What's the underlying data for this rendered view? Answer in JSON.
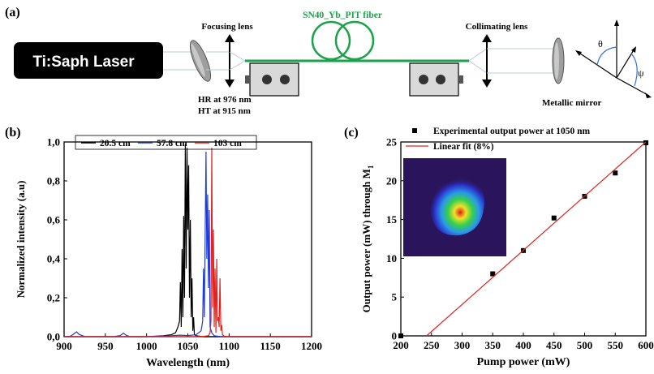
{
  "panel_a": {
    "label": "(a)",
    "laser_label": "Ti:Saph Laser",
    "focusing_lens": "Focusing lens",
    "fiber_label": "SN40_Yb_PIT fiber",
    "collimating_lens": "Collimating lens",
    "hr_label": "HR at 976 nm",
    "ht_label": "HT at 915 nm",
    "mirror_label": "Metallic mirror",
    "theta": "θ",
    "psi": "ψ",
    "fiber_color": "#1aa34a"
  },
  "chart_data": [
    {
      "panel": "(b)",
      "type": "line",
      "xlabel": "Wavelength (nm)",
      "ylabel": "Normalized intensity (a.u)",
      "xlim": [
        900,
        1200
      ],
      "ylim": [
        0,
        1.0
      ],
      "xticks": [
        "900",
        "950",
        "1000",
        "1050",
        "1100",
        "1150",
        "1200"
      ],
      "yticks": [
        "0,0",
        "0,2",
        "0,4",
        "0,6",
        "0,8",
        "1,0"
      ],
      "legend_position": "top",
      "series": [
        {
          "name": "20.5 cm",
          "color": "#000000",
          "x": [
            900,
            1000,
            1020,
            1030,
            1035,
            1038,
            1040,
            1041,
            1042,
            1043,
            1044,
            1045,
            1046,
            1047,
            1048,
            1049,
            1050,
            1051,
            1052,
            1053,
            1054,
            1055,
            1056,
            1057,
            1058,
            1060,
            1065,
            1070,
            1080,
            1200
          ],
          "y": [
            0,
            0,
            0.005,
            0.01,
            0.02,
            0.05,
            0.08,
            0.28,
            0.05,
            0.45,
            0.1,
            0.62,
            0.2,
            0.99,
            0.35,
            0.97,
            0.55,
            0.88,
            0.2,
            0.6,
            0.1,
            0.3,
            0.03,
            0.1,
            0.01,
            0.005,
            0.002,
            0,
            0,
            0
          ]
        },
        {
          "name": "57.8 cm",
          "color": "#1f3bd6",
          "x": [
            900,
            908,
            912,
            915,
            918,
            925,
            960,
            968,
            972,
            975,
            980,
            1000,
            1030,
            1040,
            1050,
            1060,
            1066,
            1068,
            1069,
            1070,
            1071,
            1072,
            1073,
            1074,
            1075,
            1076,
            1077,
            1079,
            1082,
            1090,
            1200
          ],
          "y": [
            0,
            0.003,
            0.015,
            0.025,
            0.012,
            0.001,
            0,
            0.006,
            0.018,
            0.008,
            0,
            0,
            0.005,
            0.008,
            0.006,
            0.01,
            0.03,
            0.08,
            0.35,
            0.1,
            0.5,
            0.95,
            0.4,
            0.73,
            0.25,
            0.65,
            0.05,
            0.02,
            0.005,
            0,
            0
          ]
        },
        {
          "name": "103 cm",
          "color": "#e0231f",
          "x": [
            900,
            1060,
            1070,
            1075,
            1077,
            1078,
            1079,
            1080,
            1081,
            1082,
            1083,
            1084,
            1085,
            1086,
            1087,
            1088,
            1089,
            1090,
            1091,
            1092,
            1094,
            1100,
            1200
          ],
          "y": [
            0,
            0,
            0.002,
            0.005,
            0.02,
            0.08,
            0.97,
            0.15,
            0.55,
            0.05,
            0.35,
            0.02,
            0.4,
            0.08,
            0.1,
            0.05,
            0.3,
            0.03,
            0.06,
            0.01,
            0.003,
            0,
            0
          ]
        }
      ]
    },
    {
      "panel": "(c)",
      "type": "scatter",
      "xlabel": "Pump power (mW)",
      "ylabel": "Output power (mW) through M",
      "ylabel_subscript": "1",
      "xlim": [
        200,
        600
      ],
      "ylim": [
        0,
        25
      ],
      "xticks": [
        "200",
        "250",
        "300",
        "350",
        "400",
        "450",
        "500",
        "550",
        "600"
      ],
      "yticks": [
        "0",
        "5",
        "10",
        "15",
        "20",
        "25"
      ],
      "legend_position": "top-left",
      "series": [
        {
          "name": "Experimental output power at 1050 nm",
          "color": "#000000",
          "marker": "square",
          "x": [
            200,
            350,
            400,
            450,
            500,
            550,
            600
          ],
          "y": [
            0,
            8.0,
            11.0,
            15.2,
            18.0,
            21.0,
            24.9
          ]
        },
        {
          "name": "Linear fit (8%)",
          "color": "#e0231f",
          "type": "line",
          "x": [
            242,
            600
          ],
          "y": [
            0,
            25
          ]
        }
      ]
    }
  ]
}
